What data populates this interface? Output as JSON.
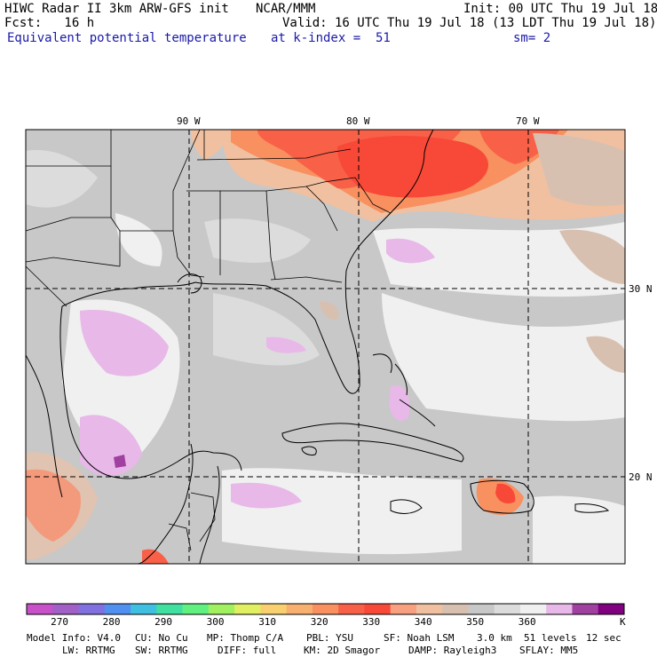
{
  "header": {
    "model": "HIWC Radar II 3km ARW-GFS init",
    "org": "NCAR/MMM",
    "init": "Init: 00 UTC Thu 19 Jul 18",
    "fcst": "Fcst:   16 h",
    "valid": "Valid: 16 UTC Thu 19 Jul 18 (13 LDT Thu 19 Jul 18)",
    "field": "Equivalent potential temperature",
    "level": "at k-index =  51",
    "smooth": "sm= 2"
  },
  "map": {
    "longitudes": [
      "90 W",
      "80 W",
      "70 W"
    ],
    "latitudes": [
      "30 N",
      "20 N"
    ]
  },
  "colorbar": {
    "unit": "K",
    "ticks": [
      "270",
      "280",
      "290",
      "300",
      "310",
      "320",
      "330",
      "340",
      "350",
      "360"
    ],
    "colors": [
      "#c850c8",
      "#a060c8",
      "#8070e0",
      "#5090f0",
      "#40c0e0",
      "#40e0a0",
      "#60f080",
      "#a0f060",
      "#e0f060",
      "#f8d070",
      "#f8b070",
      "#f89060",
      "#f86048",
      "#f84838",
      "#f8a080",
      "#f0c0a0",
      "#d8c0b0",
      "#c8c8c8",
      "#dcdcdc",
      "#f0f0f0",
      "#e8b8e8",
      "#a040a0",
      "#800080"
    ]
  },
  "footer": {
    "line1": [
      "Model Info: V4.0",
      "CU: No Cu",
      "MP: Thomp C/A",
      "PBL: YSU",
      "SF: Noah LSM",
      "3.0 km",
      "51 levels",
      "12 sec"
    ],
    "line2": [
      "LW: RRTMG",
      "SW: RRTMG",
      "DIFF: full",
      "KM: 2D Smagor",
      "DAMP: Rayleigh3",
      "SFLAY: MM5"
    ]
  }
}
